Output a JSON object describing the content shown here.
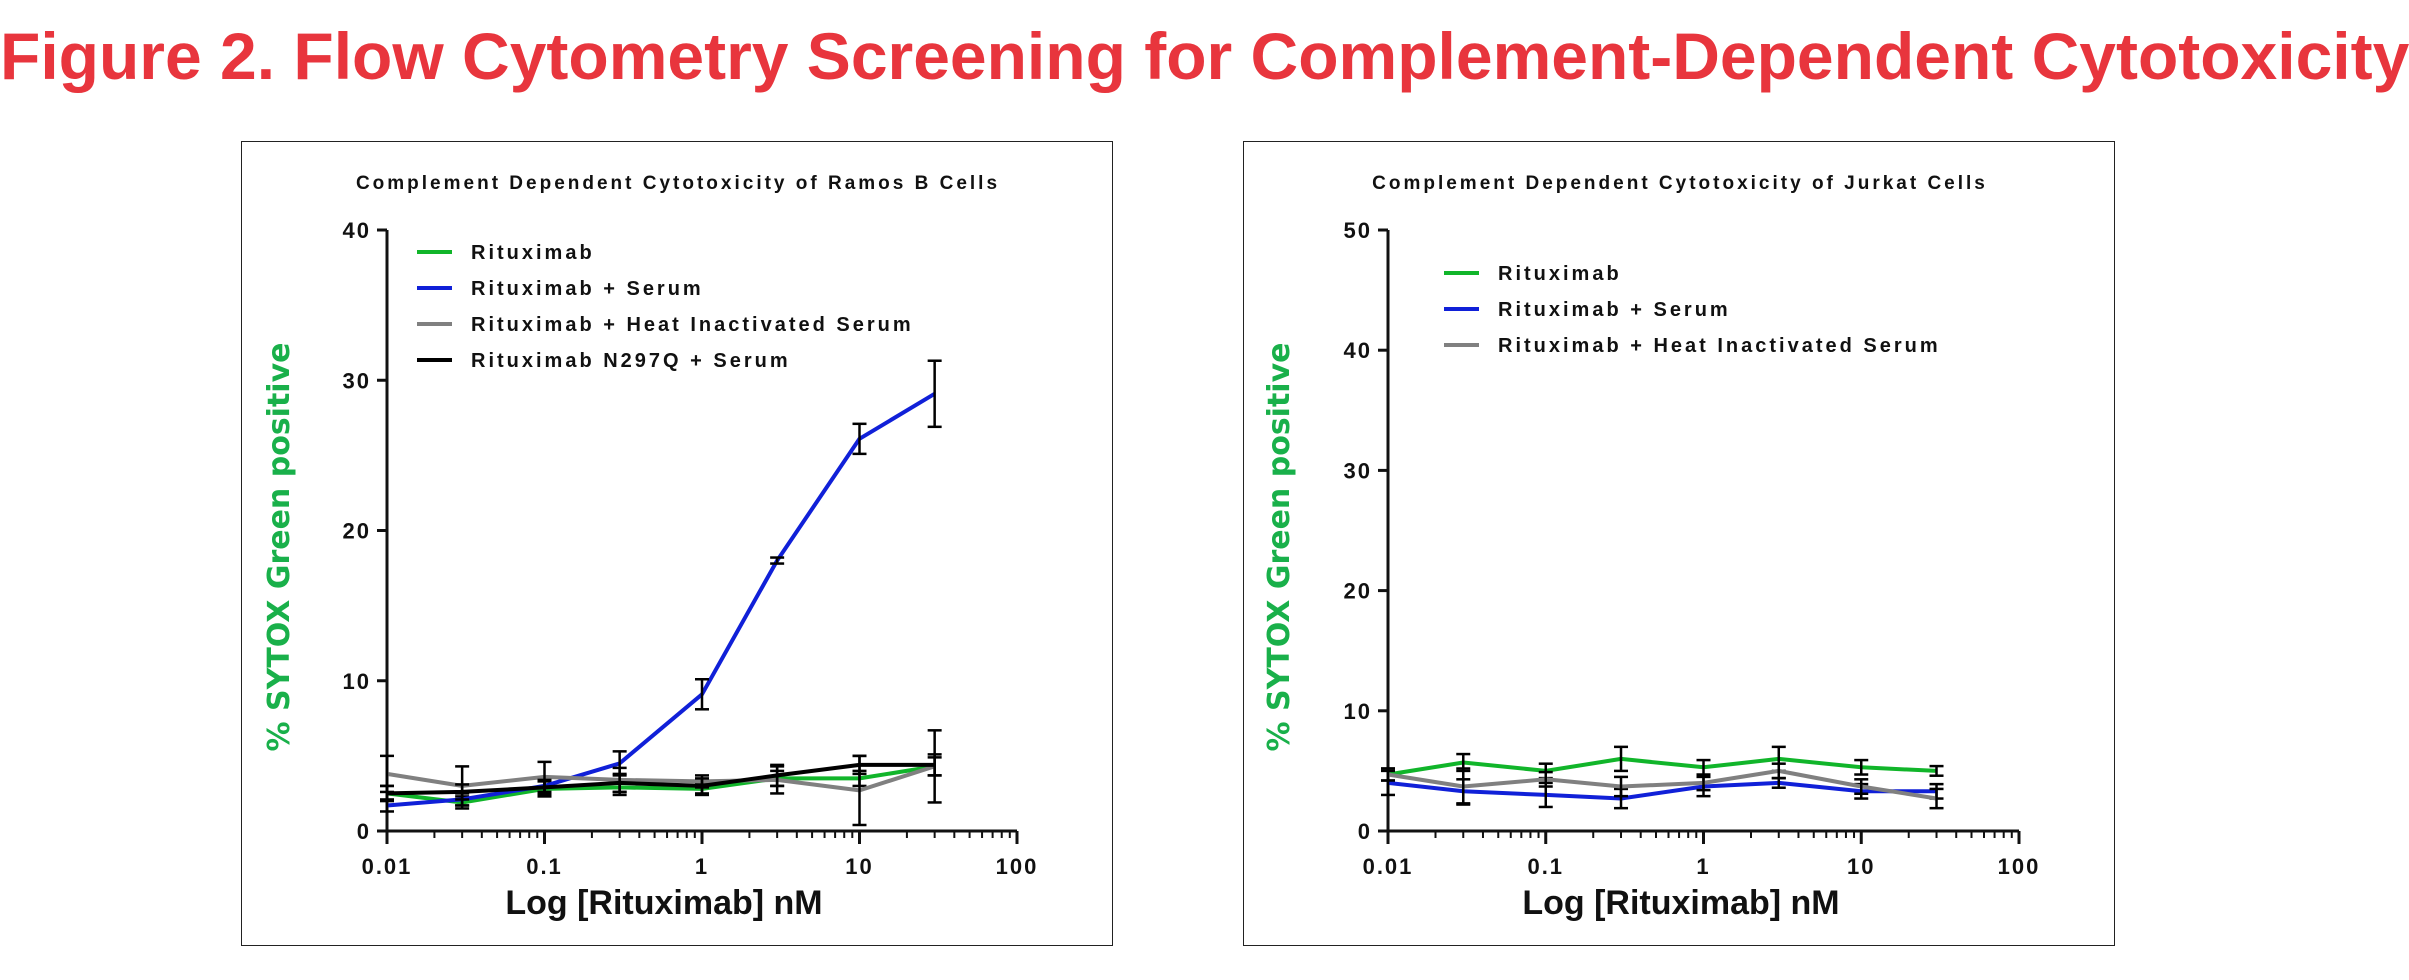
{
  "figure_title": "Figure 2. Flow Cytometry Screening for Complement-Dependent Cytotoxicity",
  "chart_data": [
    {
      "type": "line",
      "title": "Complement Dependent Cytotoxicity of Ramos B Cells",
      "xlabel": "Log [Rituximab] nM",
      "ylabel": "% SYTOX Green positive",
      "xscale": "log",
      "xlim": [
        0.01,
        100
      ],
      "ylim": [
        0,
        40
      ],
      "xticks": [
        0.01,
        0.1,
        1,
        10,
        100
      ],
      "xtick_labels": [
        "0.01",
        "0.1",
        "1",
        "10",
        "100"
      ],
      "yticks": [
        0,
        10,
        20,
        30,
        40
      ],
      "ytick_labels": [
        "0",
        "10",
        "20",
        "30",
        "40"
      ],
      "x": [
        0.01,
        0.03,
        0.1,
        0.3,
        1,
        3,
        10,
        30
      ],
      "legend_position": "top-left",
      "series": [
        {
          "name": "Rituximab",
          "color": "#11b52a",
          "values": [
            2.5,
            1.9,
            2.8,
            2.9,
            2.8,
            3.5,
            3.5,
            4.3
          ],
          "errors": [
            0.5,
            0.4,
            0.5,
            0.5,
            0.4,
            0.5,
            0.5,
            0.6
          ]
        },
        {
          "name": "Rituximab + Serum",
          "color": "#1020d8",
          "values": [
            1.7,
            2.1,
            3.0,
            4.5,
            9.1,
            18.0,
            26.1,
            29.1
          ],
          "errors": [
            0.4,
            0.4,
            0.5,
            0.8,
            1.0,
            0.2,
            1.0,
            2.2
          ]
        },
        {
          "name": "Rituximab + Heat Inactivated Serum",
          "color": "#808080",
          "values": [
            3.8,
            3.0,
            3.6,
            3.4,
            3.3,
            3.4,
            2.7,
            4.3
          ],
          "errors": [
            1.2,
            1.3,
            1.0,
            0.8,
            0.4,
            0.9,
            2.3,
            2.4
          ]
        },
        {
          "name": "Rituximab N297Q + Serum",
          "color": "#000000",
          "values": [
            2.5,
            2.6,
            2.9,
            3.2,
            3.0,
            3.7,
            4.4,
            4.4
          ],
          "errors": [
            0.5,
            0.5,
            0.5,
            0.6,
            0.5,
            0.7,
            0.6,
            0.7
          ]
        }
      ]
    },
    {
      "type": "line",
      "title": "Complement Dependent Cytotoxicity of Jurkat Cells",
      "xlabel": "Log [Rituximab] nM",
      "ylabel": "% SYTOX Green positive",
      "xscale": "log",
      "xlim": [
        0.01,
        100
      ],
      "ylim": [
        0,
        50
      ],
      "xticks": [
        0.01,
        0.1,
        1,
        10,
        100
      ],
      "xtick_labels": [
        "0.01",
        "0.1",
        "1",
        "10",
        "100"
      ],
      "yticks": [
        0,
        10,
        20,
        30,
        40,
        50
      ],
      "ytick_labels": [
        "0",
        "10",
        "20",
        "30",
        "40",
        "50"
      ],
      "x": [
        0.01,
        0.03,
        0.1,
        0.3,
        1,
        3,
        10,
        30
      ],
      "legend_position": "top-left",
      "series": [
        {
          "name": "Rituximab",
          "color": "#11b52a",
          "values": [
            4.7,
            5.7,
            5.0,
            6.0,
            5.3,
            6.0,
            5.3,
            5.0
          ],
          "errors": [
            0.5,
            0.7,
            0.6,
            1.0,
            0.6,
            1.0,
            0.6,
            0.4
          ]
        },
        {
          "name": "Rituximab + Serum",
          "color": "#1020d8",
          "values": [
            4.0,
            3.3,
            3.0,
            2.7,
            3.7,
            4.0,
            3.3,
            3.3
          ],
          "errors": [
            1.0,
            1.0,
            1.0,
            0.8,
            0.8,
            0.4,
            0.6,
            0.6
          ]
        },
        {
          "name": "Rituximab + Heat Inactivated Serum",
          "color": "#808080",
          "values": [
            4.7,
            3.7,
            4.3,
            3.7,
            4.0,
            5.0,
            3.7,
            2.7
          ],
          "errors": [
            0.5,
            1.5,
            0.6,
            0.8,
            0.6,
            0.6,
            0.6,
            0.8
          ]
        }
      ]
    }
  ]
}
